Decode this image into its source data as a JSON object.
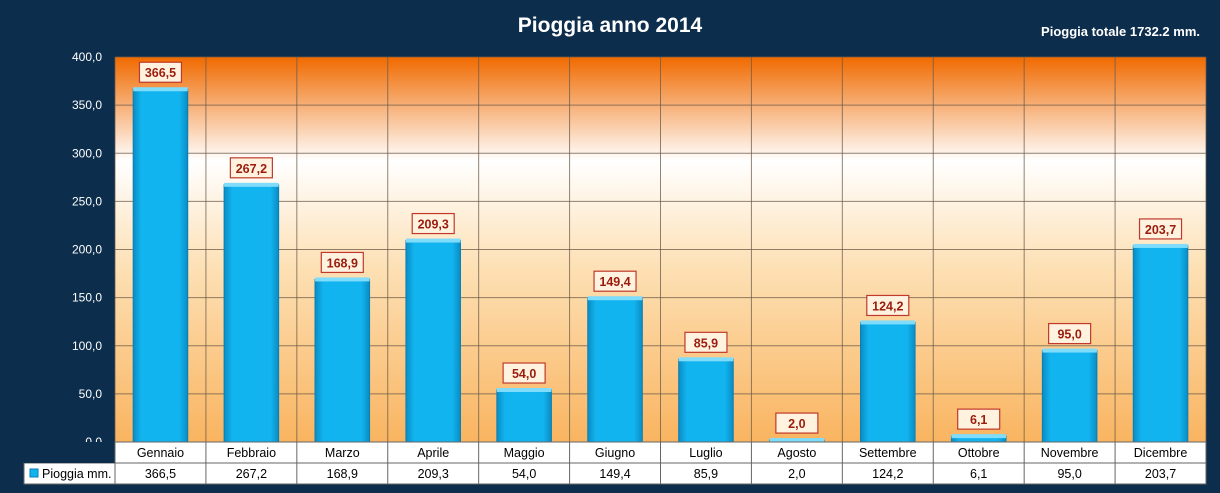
{
  "chart_data": {
    "type": "bar",
    "title": "Pioggia anno 2014",
    "subtitle": "Pioggia totale 1732.2 mm.",
    "categories": [
      "Gennaio",
      "Febbraio",
      "Marzo",
      "Aprile",
      "Maggio",
      "Giugno",
      "Luglio",
      "Agosto",
      "Settembre",
      "Ottobre",
      "Novembre",
      "Dicembre"
    ],
    "series": [
      {
        "name": "Pioggia mm.",
        "values": [
          366.5,
          267.2,
          168.9,
          209.3,
          54.0,
          149.4,
          85.9,
          2.0,
          124.2,
          6.1,
          95.0,
          203.7
        ],
        "labels": [
          "366,5",
          "267,2",
          "168,9",
          "209,3",
          "54,0",
          "149,4",
          "85,9",
          "2,0",
          "124,2",
          "6,1",
          "95,0",
          "203,7"
        ]
      }
    ],
    "ylim": [
      0,
      400
    ],
    "yticks": [
      0,
      50,
      100,
      150,
      200,
      250,
      300,
      350,
      400
    ],
    "ytick_labels": [
      "0,0",
      "50,0",
      "100,0",
      "150,0",
      "200,0",
      "250,0",
      "300,0",
      "350,0",
      "400,0"
    ],
    "xlabel": "",
    "ylabel": "",
    "grid": true,
    "legend": "data-table-left",
    "colors": {
      "frame": "#0c2d4b",
      "bar": "#12b4ef",
      "bar_light": "#7fdcfb",
      "bar_dark": "#0a8cc4",
      "label_border": "#c0392b",
      "label_text": "#9b1c0c",
      "plot_top": "#f06a00",
      "plot_mid": "#ffffff",
      "plot_bottom": "#f9b460"
    }
  }
}
